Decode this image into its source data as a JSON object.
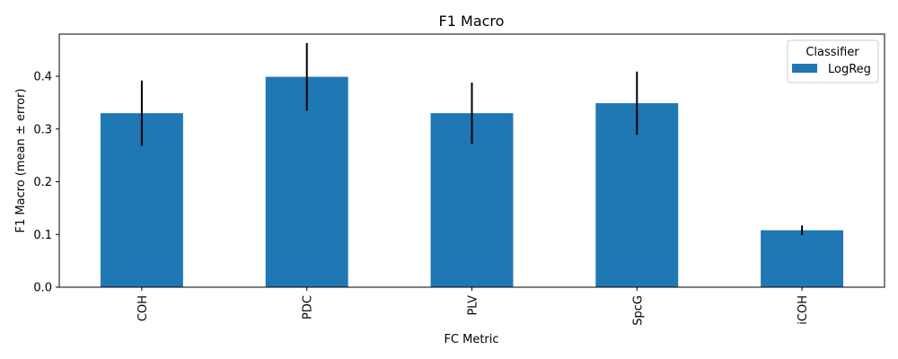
{
  "chart_data": {
    "type": "bar",
    "title": "F1 Macro",
    "xlabel": "FC Metric",
    "ylabel": "F1 Macro (mean ± error)",
    "categories": [
      "COH",
      "PDC",
      "PLV",
      "SpcG",
      "iCOH"
    ],
    "series": [
      {
        "name": "LogReg",
        "values": [
          0.33,
          0.399,
          0.33,
          0.349,
          0.108
        ],
        "errors": [
          0.062,
          0.064,
          0.058,
          0.06,
          0.009
        ]
      }
    ],
    "ylim": [
      0,
      0.48
    ],
    "yticks": [
      0.0,
      0.1,
      0.2,
      0.3,
      0.4
    ],
    "ytick_labels": [
      "0.0",
      "0.1",
      "0.2",
      "0.3",
      "0.4"
    ],
    "legend": {
      "title": "Classifier",
      "placement": "top-right"
    },
    "grid": false,
    "colors": {
      "bar": "#1f77b4",
      "error": "#000000"
    }
  }
}
